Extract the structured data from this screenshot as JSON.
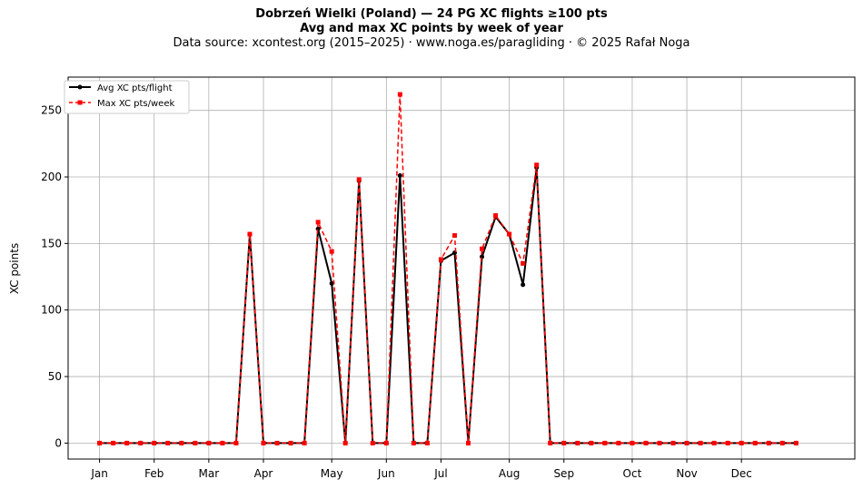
{
  "title": {
    "line1": "Dobrzeń Wielki (Poland)  —  24 PG XC flights ≥100 pts",
    "line2": "Avg and max XC points by week of year",
    "line3": "Data source: xcontest.org (2015–2025)  ·  www.noga.es/paragliding  ·  © 2025 Rafał Noga"
  },
  "chart_data": {
    "type": "line",
    "xlabel": "",
    "ylabel": "XC points",
    "ylim": [
      -12,
      275
    ],
    "yticks": [
      0,
      50,
      100,
      150,
      200,
      250
    ],
    "x_ticks": [
      {
        "label": "Jan",
        "week": 1
      },
      {
        "label": "Feb",
        "week": 5
      },
      {
        "label": "Mar",
        "week": 9
      },
      {
        "label": "Apr",
        "week": 13
      },
      {
        "label": "May",
        "week": 18
      },
      {
        "label": "Jun",
        "week": 22
      },
      {
        "label": "Jul",
        "week": 26
      },
      {
        "label": "Aug",
        "week": 31
      },
      {
        "label": "Sep",
        "week": 35
      },
      {
        "label": "Oct",
        "week": 40
      },
      {
        "label": "Nov",
        "week": 44
      },
      {
        "label": "Dec",
        "week": 48
      }
    ],
    "xlim": [
      -1.3,
      56.3
    ],
    "grid": true,
    "legend_position": "top-left",
    "x": [
      1,
      2,
      3,
      4,
      5,
      6,
      7,
      8,
      9,
      10,
      11,
      12,
      13,
      14,
      15,
      16,
      17,
      18,
      19,
      20,
      21,
      22,
      23,
      24,
      25,
      26,
      27,
      28,
      29,
      30,
      31,
      32,
      33,
      34,
      35,
      36,
      37,
      38,
      39,
      40,
      41,
      42,
      43,
      44,
      45,
      46,
      47,
      48,
      49,
      50,
      51,
      52
    ],
    "series": [
      {
        "name": "Avg XC pts/flight",
        "color": "#000000",
        "style": "solid-circle",
        "values": [
          0,
          0,
          0,
          0,
          0,
          0,
          0,
          0,
          0,
          0,
          0,
          157,
          0,
          0,
          0,
          0,
          161,
          120,
          0,
          197,
          0,
          0,
          201,
          0,
          0,
          137,
          143,
          0,
          140,
          170,
          157,
          119,
          207,
          0,
          0,
          0,
          0,
          0,
          0,
          0,
          0,
          0,
          0,
          0,
          0,
          0,
          0,
          0,
          0,
          0,
          0,
          0
        ]
      },
      {
        "name": "Max XC pts/week",
        "color": "#ff0000",
        "style": "dashed-square",
        "values": [
          0,
          0,
          0,
          0,
          0,
          0,
          0,
          0,
          0,
          0,
          0,
          157,
          0,
          0,
          0,
          0,
          166,
          144,
          0,
          198,
          0,
          0,
          262,
          0,
          0,
          138,
          156,
          0,
          146,
          171,
          157,
          135,
          209,
          0,
          0,
          0,
          0,
          0,
          0,
          0,
          0,
          0,
          0,
          0,
          0,
          0,
          0,
          0,
          0,
          0,
          0,
          0
        ]
      }
    ]
  }
}
